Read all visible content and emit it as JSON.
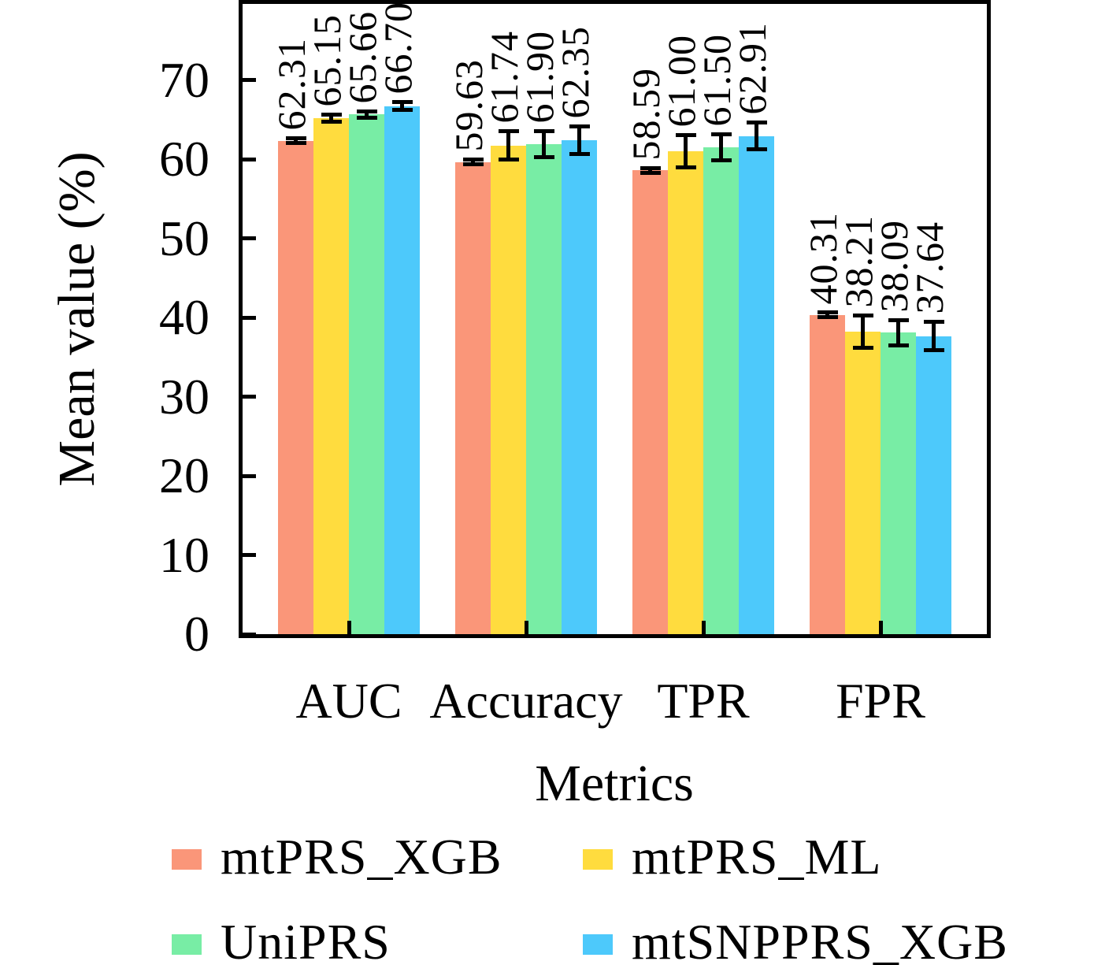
{
  "figure": {
    "background_color": "#ffffff",
    "axis_color": "#000000",
    "text_color": "#000000"
  },
  "chart_data": {
    "type": "bar",
    "title": "",
    "xlabel": "Metrics",
    "ylabel": "Mean value (%)",
    "categories": [
      "AUC",
      "Accuracy",
      "TPR",
      "FPR"
    ],
    "series": [
      {
        "name": "mtPRS_XGB",
        "color": "#FA9679",
        "values": [
          62.31,
          59.63,
          58.59,
          40.31
        ],
        "errors": [
          0.3,
          0.3,
          0.3,
          0.3
        ]
      },
      {
        "name": "mtPRS_ML",
        "color": "#FFDC3E",
        "values": [
          65.15,
          61.74,
          61.0,
          38.21
        ],
        "errors": [
          0.45,
          1.8,
          2.0,
          2.0
        ]
      },
      {
        "name": "UniPRS",
        "color": "#78EDA5",
        "values": [
          65.66,
          61.9,
          61.5,
          38.09
        ],
        "errors": [
          0.4,
          1.65,
          1.6,
          1.6
        ]
      },
      {
        "name": "mtSNPPRS_XGB",
        "color": "#4DC9FB",
        "values": [
          66.7,
          62.35,
          62.91,
          37.64
        ],
        "errors": [
          0.5,
          1.75,
          1.7,
          1.8
        ]
      }
    ],
    "value_labels": [
      [
        "62.31",
        "65.15",
        "65.66",
        "66.70"
      ],
      [
        "59.63",
        "61.74",
        "61.90",
        "62.35"
      ],
      [
        "58.59",
        "61.00",
        "61.50",
        "62.91"
      ],
      [
        "40.31",
        "38.21",
        "38.09",
        "37.64"
      ]
    ],
    "value_label_style": "rotated 90deg above each bar, two decimals",
    "error_bars": true,
    "yticks": [
      0,
      10,
      20,
      30,
      40,
      50,
      60,
      70
    ],
    "ylim": [
      0,
      79.6
    ],
    "grid": false,
    "legend_position": "bottom, 2 columns x 2 rows"
  }
}
